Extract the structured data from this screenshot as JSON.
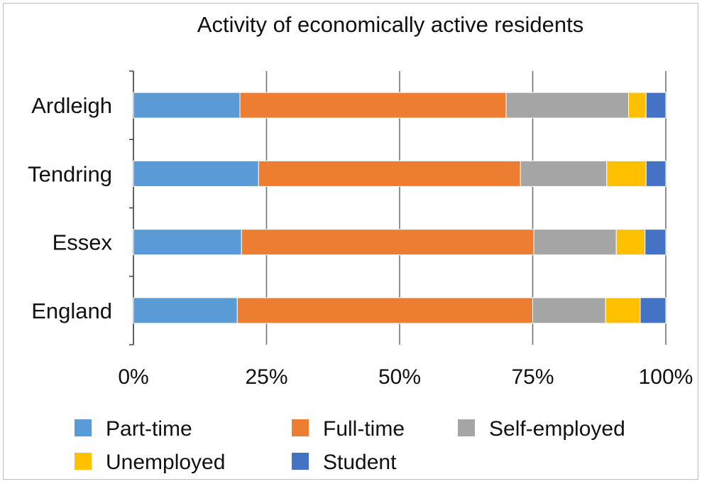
{
  "chart_data": {
    "type": "bar",
    "orientation": "horizontal",
    "stacked": true,
    "percent_stacked": true,
    "title": "Activity of economically active residents",
    "xlabel": "",
    "ylabel": "",
    "xlim": [
      0,
      100
    ],
    "grid": true,
    "legend_position": "bottom",
    "categories": [
      "Ardleigh",
      "Tendring",
      "Essex",
      "England"
    ],
    "x_ticks": [
      "0%",
      "25%",
      "50%",
      "75%",
      "100%"
    ],
    "series": [
      {
        "name": "Part-time",
        "color": "#5b9bd5",
        "values": [
          20,
          23.5,
          20.3,
          19.5
        ]
      },
      {
        "name": "Full-time",
        "color": "#ed7d31",
        "values": [
          50,
          49.2,
          54.9,
          55.5
        ]
      },
      {
        "name": "Self-employed",
        "color": "#a5a5a5",
        "values": [
          23,
          16.2,
          15.5,
          13.7
        ]
      },
      {
        "name": "Unemployed",
        "color": "#ffc000",
        "values": [
          3.3,
          7.4,
          5.4,
          6.5
        ]
      },
      {
        "name": "Student",
        "color": "#4472c4",
        "values": [
          3.7,
          3.7,
          3.9,
          4.8
        ]
      }
    ]
  }
}
